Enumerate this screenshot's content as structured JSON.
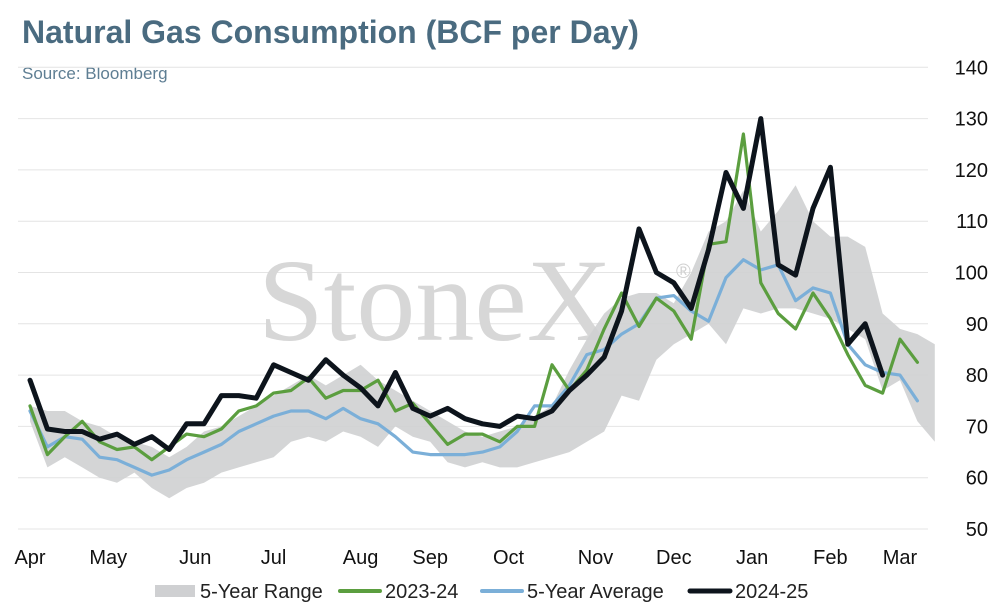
{
  "title": "Natural Gas Consumption (BCF per Day)",
  "subtitle": "Source: Bloomberg",
  "watermark": "StoneX",
  "watermark_mark": "®",
  "colors": {
    "range": "#cfd0d2",
    "s2324": "#5b9e3f",
    "avg": "#7bafd8",
    "s2425": "#0d141c",
    "title": "#4a6b80"
  },
  "chart_data": {
    "type": "line",
    "ylim": [
      50,
      140
    ],
    "yticks": [
      50,
      60,
      70,
      80,
      90,
      100,
      110,
      120,
      130,
      140
    ],
    "y_axis_side": "right",
    "grid": true,
    "legend_position": "bottom",
    "months": [
      "Apr",
      "May",
      "Jun",
      "Jul",
      "Aug",
      "Sep",
      "Oct",
      "Nov",
      "Dec",
      "Jan",
      "Feb",
      "Mar"
    ],
    "month_week_index": [
      0,
      4.5,
      9.5,
      14,
      19,
      23,
      27.5,
      32.5,
      37,
      41.5,
      46,
      50
    ],
    "weeks": 53,
    "range": {
      "name": "5-Year Range",
      "upper": [
        74,
        73,
        73,
        71,
        70,
        68,
        67,
        66,
        64,
        66,
        69,
        70,
        72,
        74,
        76,
        78,
        80,
        78,
        80,
        82,
        79,
        77,
        75,
        73,
        71,
        69,
        68,
        69,
        70,
        72,
        74,
        81,
        87,
        92,
        95,
        96,
        96,
        94,
        100,
        108,
        110,
        116,
        108,
        112,
        117,
        110,
        107,
        107,
        105,
        92,
        89,
        88,
        86
      ],
      "lower": [
        71,
        62,
        64,
        62,
        60,
        59,
        61,
        58,
        56,
        58,
        59,
        61,
        62,
        63,
        64,
        67,
        68,
        67,
        69,
        68,
        66,
        70,
        68,
        67,
        63,
        62,
        63,
        62,
        62,
        63,
        64,
        65,
        67,
        69,
        76,
        75,
        83,
        86,
        88,
        90,
        86,
        93,
        92,
        93,
        93,
        92,
        91,
        89,
        87,
        77,
        79,
        71,
        67
      ]
    },
    "series": [
      {
        "name": "2023-24",
        "values": [
          74,
          64.5,
          68,
          71,
          67,
          65.5,
          66,
          63.5,
          66,
          68.5,
          68,
          69.5,
          73,
          74,
          76.5,
          77,
          79.5,
          75.5,
          77,
          77,
          79,
          73,
          74.5,
          70.5,
          66.5,
          68.5,
          68.5,
          67,
          70,
          70,
          82,
          77,
          81,
          89,
          96,
          89.5,
          95,
          92.5,
          87,
          105.5,
          106,
          127,
          98,
          92,
          89,
          96,
          91,
          84,
          78,
          76.5,
          87,
          82.5
        ]
      },
      {
        "name": "5-Year Average",
        "values": [
          73,
          66,
          68,
          67.5,
          64,
          63.5,
          62,
          60.5,
          61.5,
          63.5,
          65,
          66.5,
          69,
          70.5,
          72,
          73,
          73,
          71.5,
          73.5,
          71.5,
          70.5,
          68,
          65,
          64.5,
          64.5,
          64.5,
          65,
          66,
          69,
          74,
          74,
          78,
          84,
          85,
          88,
          90,
          95,
          95.5,
          92.5,
          90.5,
          99,
          102.5,
          100.5,
          101.5,
          94.5,
          97,
          96,
          86,
          82,
          80.5,
          80,
          75
        ]
      },
      {
        "name": "2024-25",
        "values": [
          79,
          69.5,
          69,
          69,
          67.5,
          68.5,
          66.5,
          68,
          65.5,
          70.5,
          70.5,
          76,
          76,
          75.5,
          82,
          80.5,
          79,
          83,
          80,
          77.5,
          74,
          80.5,
          73.5,
          72,
          73.5,
          71.5,
          70.5,
          70,
          72,
          71.5,
          73,
          77,
          80,
          83.5,
          92.5,
          108.5,
          100,
          98,
          93,
          104.5,
          119.5,
          112.5,
          130,
          101.5,
          99.5,
          112.5,
          120.5,
          86,
          90,
          80
        ]
      }
    ]
  }
}
